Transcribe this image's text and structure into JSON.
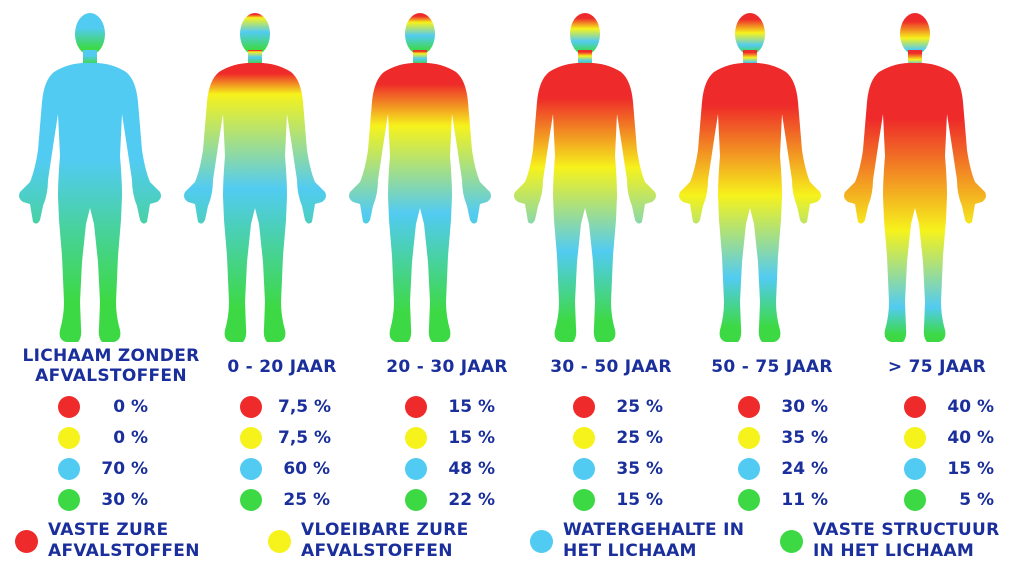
{
  "colors": {
    "red": "#ee2a2a",
    "yellow": "#f6f21c",
    "blue": "#52cbf2",
    "green": "#3dd945",
    "text": "#1a2f9c"
  },
  "legend": [
    {
      "key": "red",
      "label": "VASTE ZURE\nAFVALSTOFFEN"
    },
    {
      "key": "yellow",
      "label": "VLOEIBARE ZURE\nAFVALSTOFFEN"
    },
    {
      "key": "blue",
      "label": "WATERGEHALTE IN\nHET LICHAAM"
    },
    {
      "key": "green",
      "label": "VASTE STRUCTUUR\nIN HET LICHAAM"
    }
  ],
  "columns": [
    {
      "label": "LICHAAM ZONDER\nAFVALSTOFFEN",
      "values": [
        "0 %",
        "0 %",
        "70 %",
        "30 %"
      ],
      "fractions": [
        0,
        0,
        0.7,
        0.3
      ]
    },
    {
      "label": "0 - 20 JAAR",
      "values": [
        "7,5 %",
        "7,5 %",
        "60 %",
        "25 %"
      ],
      "fractions": [
        0.075,
        0.075,
        0.6,
        0.25
      ]
    },
    {
      "label": "20 - 30 JAAR",
      "values": [
        "15 %",
        "15 %",
        "48 %",
        "22 %"
      ],
      "fractions": [
        0.15,
        0.15,
        0.48,
        0.22
      ]
    },
    {
      "label": "30 - 50 JAAR",
      "values": [
        "25 %",
        "25 %",
        "35 %",
        "15 %"
      ],
      "fractions": [
        0.25,
        0.25,
        0.35,
        0.15
      ]
    },
    {
      "label": "50 - 75 JAAR",
      "values": [
        "30 %",
        "35 %",
        "24 %",
        "11 %"
      ],
      "fractions": [
        0.3,
        0.35,
        0.24,
        0.11
      ]
    },
    {
      "label": "> 75 JAAR",
      "values": [
        "40 %",
        "40 %",
        "15 %",
        "5 %"
      ],
      "fractions": [
        0.4,
        0.4,
        0.15,
        0.05
      ]
    }
  ]
}
